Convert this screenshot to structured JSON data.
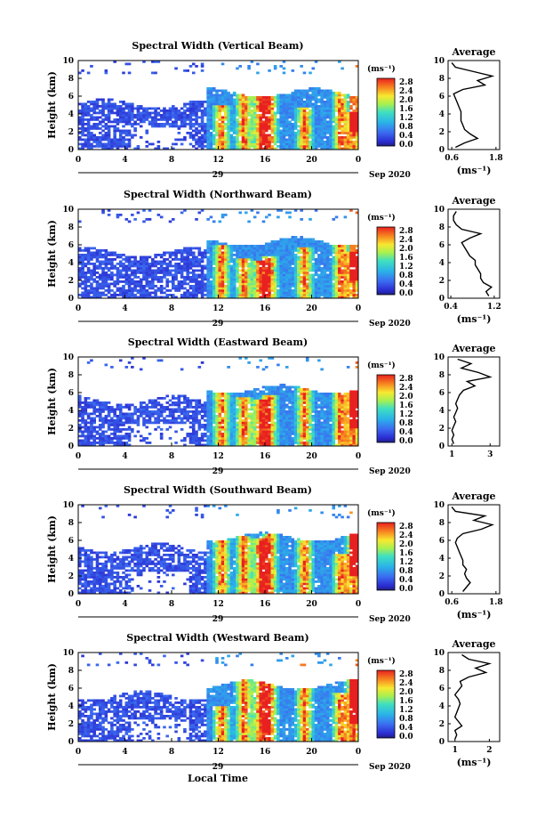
{
  "chart_data": [
    {
      "type": "heatmap",
      "title": "Spectral Width (Vertical Beam)",
      "ylabel": "Height (km)",
      "xticks": [
        "0",
        "4",
        "8",
        "12",
        "16",
        "20",
        "0"
      ],
      "yticks": [
        "0",
        "2",
        "4",
        "6",
        "8",
        "10"
      ],
      "ylim": [
        0,
        10
      ],
      "date_labels": [
        "29",
        "Sep 2020"
      ],
      "colorbar": {
        "unit": "(ms⁻¹)",
        "ticks": [
          "2.8",
          "2.4",
          "2.0",
          "1.6",
          "1.2",
          "0.8",
          "0.4",
          "0.0"
        ],
        "range": [
          0,
          3.0
        ]
      },
      "profile": {
        "title": "Average",
        "xlabel": "(ms⁻¹)",
        "xticks": [
          "0.6",
          "1.8"
        ],
        "xlim": [
          0.5,
          1.9
        ],
        "heights": [
          0.25,
          0.75,
          1.25,
          1.75,
          2.25,
          2.75,
          3.25,
          3.75,
          4.25,
          4.75,
          5.25,
          5.75,
          6.25,
          6.75,
          7.25,
          7.75,
          8.25,
          8.75,
          9.25,
          9.75
        ],
        "values": [
          0.7,
          0.95,
          1.3,
          1.1,
          0.95,
          0.9,
          0.85,
          0.85,
          0.85,
          0.8,
          0.75,
          0.7,
          0.65,
          0.9,
          1.5,
          1.3,
          1.7,
          1.2,
          0.7,
          0.6
        ]
      }
    },
    {
      "type": "heatmap",
      "title": "Spectral Width (Northward Beam)",
      "ylabel": "Height (km)",
      "xticks": [
        "0",
        "4",
        "8",
        "12",
        "16",
        "20",
        "0"
      ],
      "yticks": [
        "0",
        "2",
        "4",
        "6",
        "8",
        "10"
      ],
      "ylim": [
        0,
        10
      ],
      "date_labels": [
        "29",
        "Sep 2020"
      ],
      "colorbar": {
        "unit": "(ms⁻¹)",
        "ticks": [
          "2.8",
          "2.4",
          "2.0",
          "1.6",
          "1.2",
          "0.8",
          "0.4",
          "0.0"
        ],
        "range": [
          0,
          3.0
        ]
      },
      "profile": {
        "title": "Average",
        "xlabel": "(ms⁻¹)",
        "xticks": [
          "0.4",
          "1.2"
        ],
        "xlim": [
          0.35,
          1.3
        ],
        "heights": [
          0.25,
          0.75,
          1.25,
          1.75,
          2.25,
          2.75,
          3.25,
          3.75,
          4.25,
          4.75,
          5.25,
          5.75,
          6.25,
          6.75,
          7.25,
          7.75,
          8.25,
          8.75,
          9.25,
          9.75
        ],
        "values": [
          1.1,
          1.05,
          1.15,
          1.0,
          0.95,
          0.95,
          0.9,
          0.85,
          0.85,
          0.75,
          0.7,
          0.65,
          0.6,
          0.75,
          0.95,
          0.6,
          0.5,
          0.45,
          0.45,
          0.5
        ]
      }
    },
    {
      "type": "heatmap",
      "title": "Spectral Width (Eastward Beam)",
      "ylabel": "Height (km)",
      "xticks": [
        "0",
        "4",
        "8",
        "12",
        "16",
        "20",
        "0"
      ],
      "yticks": [
        "0",
        "2",
        "4",
        "6",
        "8",
        "10"
      ],
      "ylim": [
        0,
        10
      ],
      "date_labels": [
        "29",
        "Sep 2020"
      ],
      "colorbar": {
        "unit": "(ms⁻¹)",
        "ticks": [
          "2.8",
          "2.4",
          "2.0",
          "1.6",
          "1.2",
          "0.8",
          "0.4",
          "0.0"
        ],
        "range": [
          0,
          3.0
        ]
      },
      "profile": {
        "title": "Average",
        "xlabel": "",
        "xticks": [
          "1",
          "3"
        ],
        "xlim": [
          0.8,
          3.5
        ],
        "heights": [
          0.25,
          0.75,
          1.25,
          1.75,
          2.25,
          2.75,
          3.25,
          3.75,
          4.25,
          4.75,
          5.25,
          5.75,
          6.25,
          6.75,
          7.25,
          7.75,
          8.25,
          8.75,
          9.25,
          9.75
        ],
        "values": [
          1.1,
          1.0,
          1.1,
          1.0,
          1.1,
          1.2,
          1.1,
          1.2,
          1.3,
          1.2,
          1.3,
          1.4,
          1.6,
          2.2,
          1.8,
          3.0,
          2.4,
          1.5,
          2.0,
          1.3
        ]
      }
    },
    {
      "type": "heatmap",
      "title": "Spectral Width (Southward Beam)",
      "ylabel": "Height (km)",
      "xticks": [
        "0",
        "4",
        "8",
        "12",
        "16",
        "20",
        "0"
      ],
      "yticks": [
        "0",
        "2",
        "4",
        "6",
        "8",
        "10"
      ],
      "ylim": [
        0,
        10
      ],
      "date_labels": [
        "29",
        "Sep 2020"
      ],
      "colorbar": {
        "unit": "(ms⁻¹)",
        "ticks": [
          "2.8",
          "2.4",
          "2.0",
          "1.6",
          "1.2",
          "0.8",
          "0.4",
          "0.0"
        ],
        "range": [
          0,
          3.0
        ]
      },
      "profile": {
        "title": "Average",
        "xlabel": "(ms⁻¹)",
        "xticks": [
          "0.6",
          "1.8"
        ],
        "xlim": [
          0.5,
          1.9
        ],
        "heights": [
          0.25,
          0.75,
          1.25,
          1.75,
          2.25,
          2.75,
          3.25,
          3.75,
          4.25,
          4.75,
          5.25,
          5.75,
          6.25,
          6.75,
          7.25,
          7.75,
          8.25,
          8.75,
          9.25,
          9.75
        ],
        "values": [
          0.9,
          1.0,
          1.1,
          1.0,
          0.95,
          1.0,
          0.9,
          0.9,
          0.85,
          0.8,
          0.75,
          0.7,
          0.75,
          0.9,
          1.4,
          1.7,
          1.2,
          1.5,
          0.7,
          0.6
        ]
      }
    },
    {
      "type": "heatmap",
      "title": "Spectral Width (Westward Beam)",
      "ylabel": "Height (km)",
      "xlabel": "Local Time",
      "xticks": [
        "0",
        "4",
        "8",
        "12",
        "16",
        "20",
        "0"
      ],
      "yticks": [
        "0",
        "2",
        "4",
        "6",
        "8",
        "10"
      ],
      "ylim": [
        0,
        10
      ],
      "date_labels": [
        "29",
        "Sep 2020"
      ],
      "colorbar": {
        "unit": "(ms⁻¹)",
        "ticks": [
          "2.8",
          "2.4",
          "2.0",
          "1.6",
          "1.2",
          "0.8",
          "0.4",
          "0.0"
        ],
        "range": [
          0,
          3.0
        ]
      },
      "profile": {
        "title": "Average",
        "xlabel": "(ms⁻¹)",
        "xticks": [
          "1",
          "2"
        ],
        "xlim": [
          0.8,
          2.3
        ],
        "heights": [
          0.25,
          0.75,
          1.25,
          1.75,
          2.25,
          2.75,
          3.25,
          3.75,
          4.25,
          4.75,
          5.25,
          5.75,
          6.25,
          6.75,
          7.25,
          7.75,
          8.25,
          8.75,
          9.25,
          9.75
        ],
        "values": [
          1.0,
          1.05,
          1.0,
          1.2,
          1.1,
          1.0,
          1.05,
          1.1,
          1.15,
          1.1,
          1.0,
          1.1,
          1.2,
          1.15,
          1.4,
          1.9,
          1.6,
          2.0,
          1.4,
          1.2
        ]
      }
    }
  ]
}
